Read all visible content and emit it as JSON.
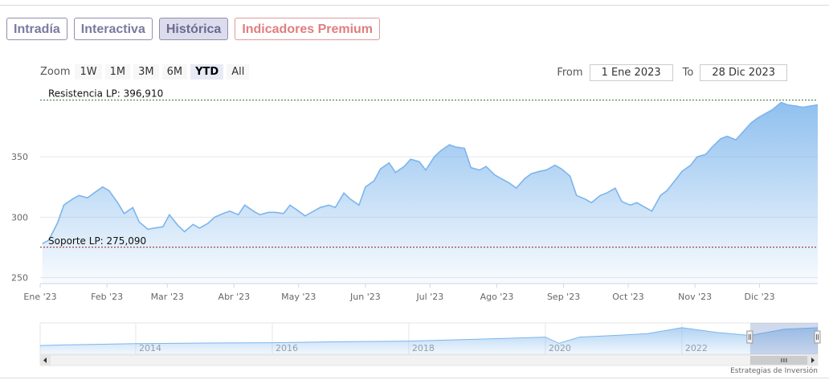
{
  "tabs": [
    {
      "label": "Intradía",
      "state": "normal"
    },
    {
      "label": "Interactiva",
      "state": "normal"
    },
    {
      "label": "Histórica",
      "state": "active"
    },
    {
      "label": "Indicadores Premium",
      "state": "premium"
    }
  ],
  "range_selector": {
    "zoom_label": "Zoom",
    "buttons": [
      "1W",
      "1M",
      "3M",
      "6M",
      "YTD",
      "All"
    ],
    "selected": "YTD",
    "from_label": "From",
    "from_value": "1 Ene 2023",
    "to_label": "To",
    "to_value": "28 Dic 2023"
  },
  "credit": "Estrategias de Inversión",
  "colors": {
    "line": "#7cb5ec",
    "fill_top": "#8fbfee",
    "resistance": "#2f6f2f",
    "support": "#8b1a1a"
  },
  "chart_data": {
    "type": "area",
    "x": [
      "2023-01-02",
      "2023-01-05",
      "2023-01-09",
      "2023-01-12",
      "2023-01-16",
      "2023-01-19",
      "2023-01-23",
      "2023-01-26",
      "2023-01-30",
      "2023-02-02",
      "2023-02-06",
      "2023-02-09",
      "2023-02-13",
      "2023-02-16",
      "2023-02-20",
      "2023-02-23",
      "2023-02-27",
      "2023-03-02",
      "2023-03-06",
      "2023-03-09",
      "2023-03-13",
      "2023-03-16",
      "2023-03-20",
      "2023-03-23",
      "2023-03-27",
      "2023-03-30",
      "2023-04-03",
      "2023-04-06",
      "2023-04-10",
      "2023-04-13",
      "2023-04-17",
      "2023-04-20",
      "2023-04-24",
      "2023-04-27",
      "2023-05-01",
      "2023-05-04",
      "2023-05-08",
      "2023-05-11",
      "2023-05-15",
      "2023-05-18",
      "2023-05-22",
      "2023-05-25",
      "2023-05-29",
      "2023-06-01",
      "2023-06-05",
      "2023-06-08",
      "2023-06-12",
      "2023-06-15",
      "2023-06-19",
      "2023-06-22",
      "2023-06-26",
      "2023-06-29",
      "2023-07-03",
      "2023-07-06",
      "2023-07-10",
      "2023-07-13",
      "2023-07-17",
      "2023-07-20",
      "2023-07-24",
      "2023-07-27",
      "2023-07-31",
      "2023-08-03",
      "2023-08-07",
      "2023-08-10",
      "2023-08-14",
      "2023-08-17",
      "2023-08-21",
      "2023-08-24",
      "2023-08-28",
      "2023-08-31",
      "2023-09-04",
      "2023-09-07",
      "2023-09-11",
      "2023-09-14",
      "2023-09-18",
      "2023-09-21",
      "2023-09-25",
      "2023-09-28",
      "2023-10-02",
      "2023-10-05",
      "2023-10-09",
      "2023-10-12",
      "2023-10-16",
      "2023-10-19",
      "2023-10-23",
      "2023-10-26",
      "2023-10-30",
      "2023-11-02",
      "2023-11-06",
      "2023-11-09",
      "2023-11-13",
      "2023-11-16",
      "2023-11-20",
      "2023-11-23",
      "2023-11-27",
      "2023-11-30",
      "2023-12-04",
      "2023-12-07",
      "2023-12-11",
      "2023-12-14",
      "2023-12-18",
      "2023-12-21",
      "2023-12-28"
    ],
    "values": [
      278,
      281,
      295,
      310,
      315,
      318,
      316,
      320,
      325,
      322,
      312,
      303,
      308,
      296,
      290,
      291,
      292,
      302,
      293,
      288,
      294,
      291,
      295,
      300,
      303,
      305,
      302,
      310,
      305,
      302,
      304,
      304,
      303,
      310,
      305,
      301,
      305,
      308,
      310,
      308,
      320,
      315,
      310,
      325,
      330,
      340,
      345,
      337,
      342,
      348,
      346,
      339,
      350,
      355,
      360,
      358,
      357,
      341,
      339,
      342,
      335,
      332,
      328,
      324,
      332,
      336,
      338,
      339,
      343,
      340,
      334,
      318,
      315,
      312,
      318,
      320,
      324,
      313,
      310,
      312,
      308,
      305,
      318,
      322,
      331,
      338,
      343,
      350,
      352,
      358,
      365,
      367,
      364,
      370,
      378,
      382,
      386,
      389,
      395,
      393,
      392,
      391,
      393
    ],
    "ylim": [
      245,
      400
    ],
    "y_ticks": [
      250,
      300,
      350
    ],
    "x_tick_labels": [
      {
        "date": "2023-01-01",
        "label": "Ene '23"
      },
      {
        "date": "2023-02-01",
        "label": "Feb '23"
      },
      {
        "date": "2023-03-01",
        "label": "Mar '23"
      },
      {
        "date": "2023-04-01",
        "label": "Abr '23"
      },
      {
        "date": "2023-05-01",
        "label": "May '23"
      },
      {
        "date": "2023-06-01",
        "label": "Jun '23"
      },
      {
        "date": "2023-07-01",
        "label": "Jul '23"
      },
      {
        "date": "2023-08-01",
        "label": "Ago '23"
      },
      {
        "date": "2023-09-01",
        "label": "Sep '23"
      },
      {
        "date": "2023-10-01",
        "label": "Oct '23"
      },
      {
        "date": "2023-11-01",
        "label": "Nov '23"
      },
      {
        "date": "2023-12-01",
        "label": "Dic '23"
      }
    ],
    "grid": true,
    "resistance": {
      "label": "Resistencia LP: 396,910",
      "value": 396.91
    },
    "support": {
      "label": "Soporte LP: 275,090",
      "value": 275.09
    },
    "navigator": {
      "years": [
        "2014",
        "2016",
        "2018",
        "2020",
        "2022"
      ],
      "year_values": [
        2014,
        2016,
        2018,
        2020,
        2022
      ],
      "range": [
        2012.6,
        2023.99
      ],
      "series_x": [
        2012.6,
        2013,
        2014,
        2015,
        2016,
        2017,
        2018,
        2019,
        2020,
        2020.2,
        2020.5,
        2021,
        2021.5,
        2022,
        2022.5,
        2023,
        2023.5,
        2023.99
      ],
      "series_y": [
        0.28,
        0.3,
        0.34,
        0.36,
        0.37,
        0.4,
        0.42,
        0.48,
        0.55,
        0.35,
        0.55,
        0.6,
        0.66,
        0.85,
        0.7,
        0.6,
        0.8,
        0.85
      ],
      "window": [
        2023.0,
        2023.99
      ]
    }
  }
}
